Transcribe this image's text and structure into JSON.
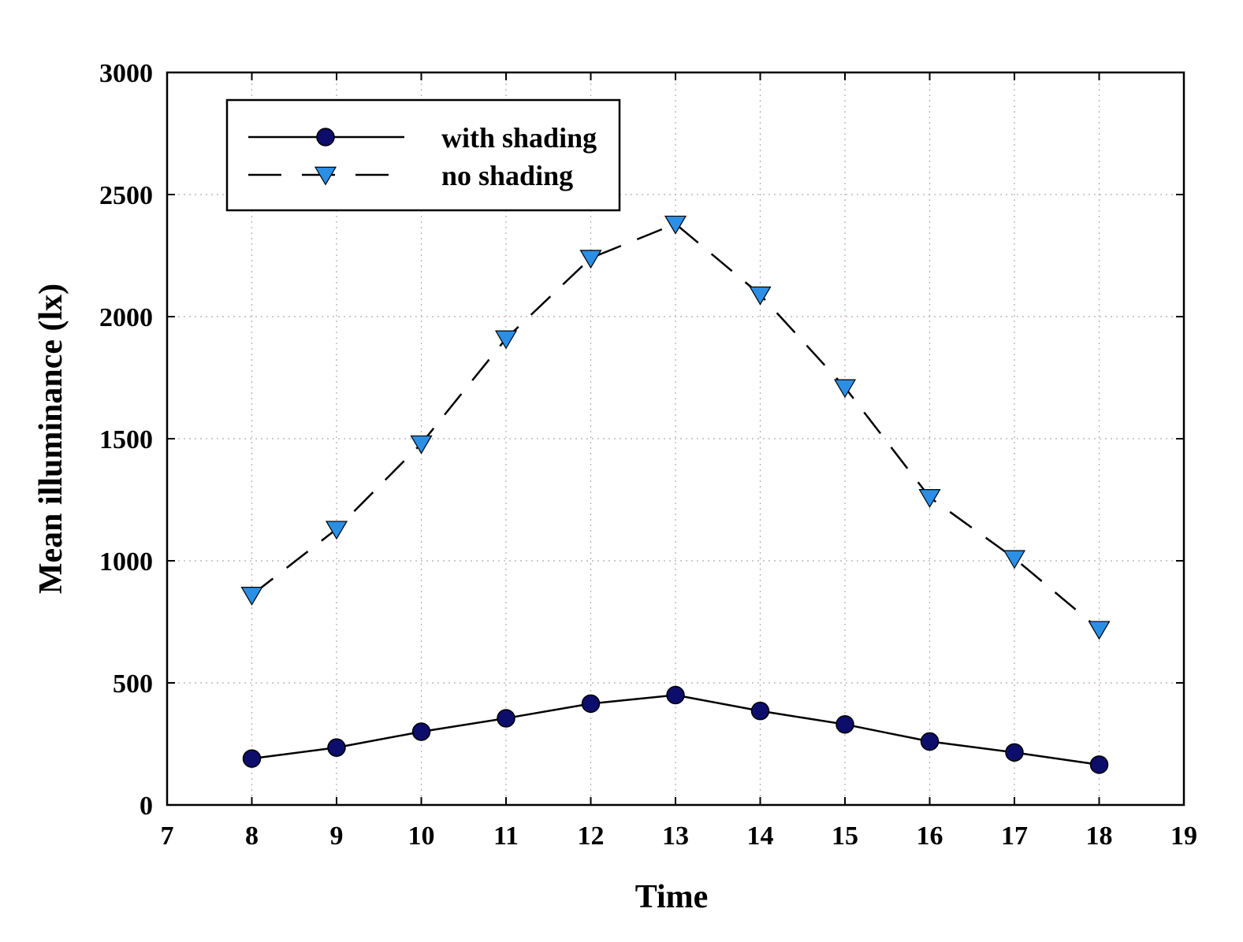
{
  "chart_data": {
    "type": "line",
    "xlabel": "Time",
    "ylabel": "Mean illuminance (lx)",
    "xlim": [
      7,
      19
    ],
    "ylim": [
      0,
      3000
    ],
    "x_ticks": [
      "7",
      "8",
      "9",
      "10",
      "11",
      "12",
      "13",
      "14",
      "15",
      "16",
      "17",
      "18",
      "19"
    ],
    "y_ticks": [
      "0",
      "500",
      "1000",
      "1500",
      "2000",
      "2500",
      "3000"
    ],
    "grid": true,
    "legend_position": "top-left",
    "x": [
      8,
      9,
      10,
      11,
      12,
      13,
      14,
      15,
      16,
      17,
      18
    ],
    "series": [
      {
        "name": "with shading",
        "marker": "circle",
        "line": "solid",
        "marker_color": "#0d0d6b",
        "line_color": "#000000",
        "values": [
          190,
          235,
          300,
          355,
          415,
          450,
          385,
          330,
          260,
          215,
          165
        ]
      },
      {
        "name": "no shading",
        "marker": "triangle-down",
        "line": "dashed",
        "marker_color": "#2b8fe6",
        "line_color": "#000000",
        "values": [
          860,
          1130,
          1480,
          1910,
          2240,
          2380,
          2090,
          1710,
          1260,
          1010,
          720
        ]
      }
    ]
  }
}
